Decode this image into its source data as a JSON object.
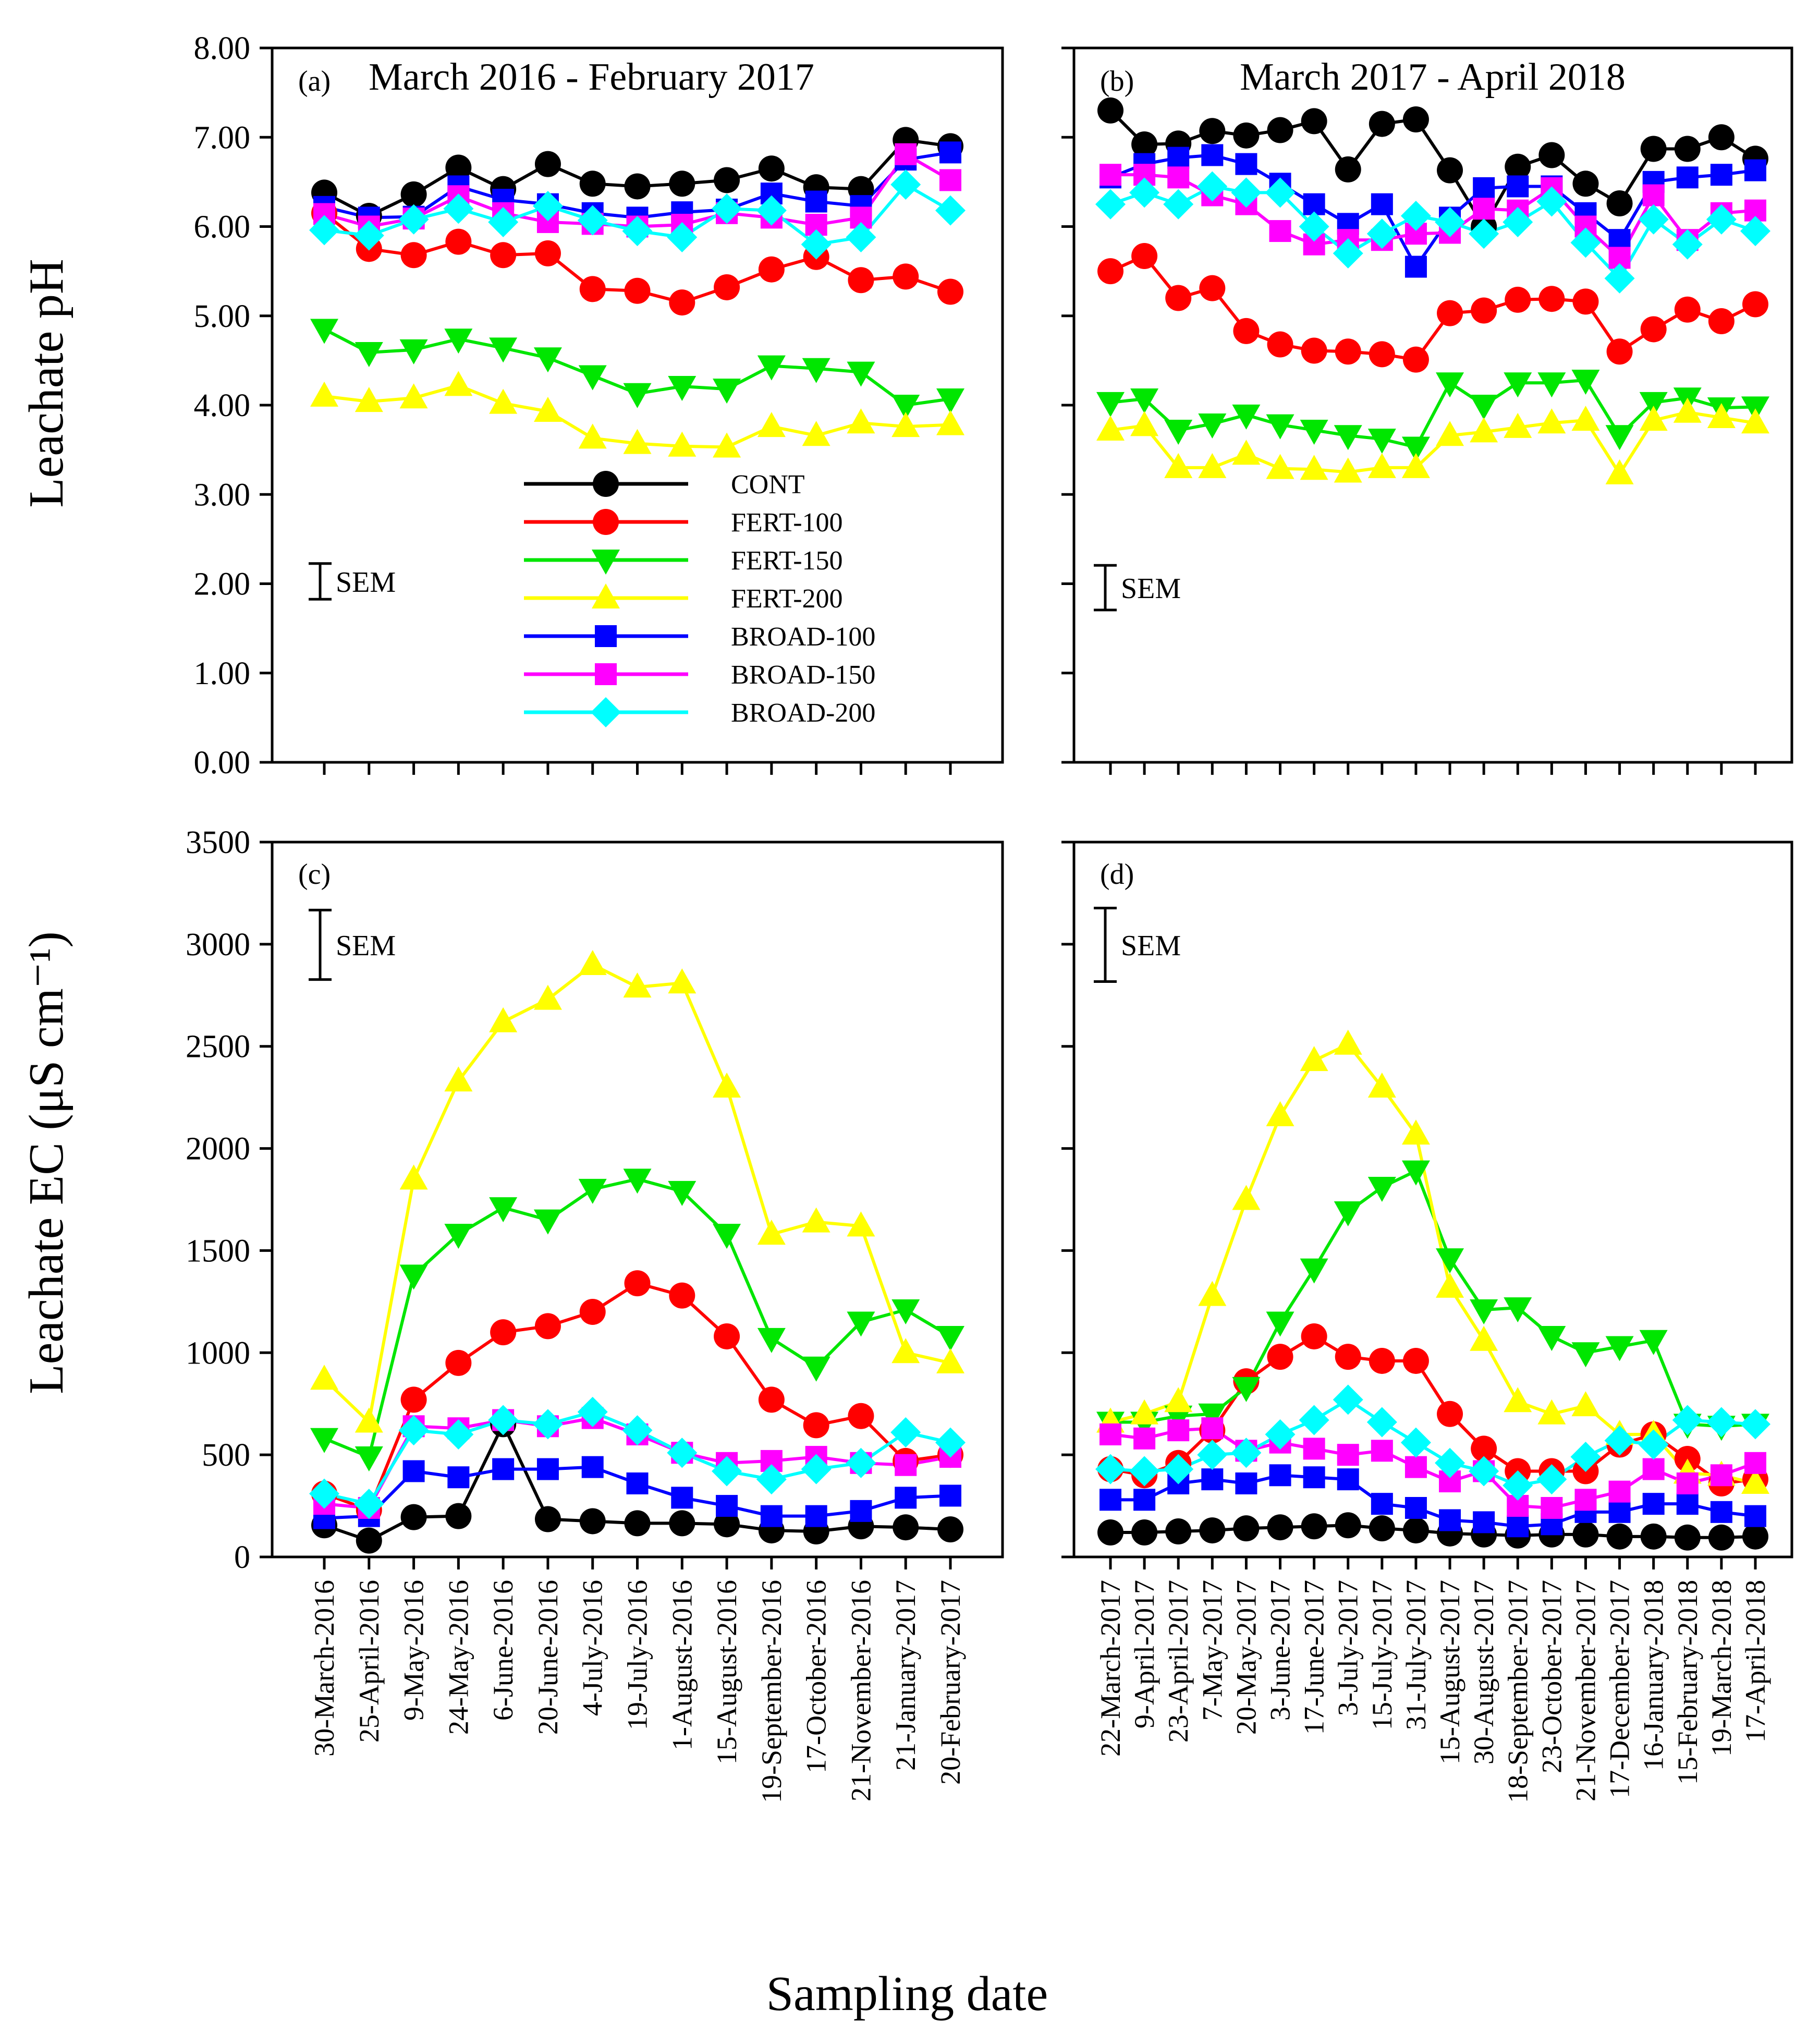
{
  "figure": {
    "xlabel": "Sampling date",
    "sem_label": "SEM"
  },
  "legend": {
    "entries": [
      "CONT",
      "FERT-100",
      "FERT-150",
      "FERT-200",
      "BROAD-100",
      "BROAD-150",
      "BROAD-200"
    ]
  },
  "colors": {
    "CONT": "#000000",
    "FERT-100": "#ff0000",
    "FERT-150": "#00e600",
    "FERT-200": "#ffff00",
    "BROAD-100": "#0000ff",
    "BROAD-150": "#ff00ff",
    "BROAD-200": "#00ffff"
  },
  "markers": {
    "CONT": "circle",
    "FERT-100": "circle",
    "FERT-150": "triangle-down",
    "FERT-200": "triangle-up",
    "BROAD-100": "square",
    "BROAD-150": "square",
    "BROAD-200": "diamond"
  },
  "chart_data": [
    {
      "id": "a",
      "type": "line",
      "tag": "(a)",
      "title": "March 2016 - February 2017",
      "ylabel": "Leachate pH",
      "ylim": [
        0,
        8
      ],
      "yticks": [
        "0.00",
        "1.00",
        "2.00",
        "3.00",
        "4.00",
        "5.00",
        "6.00",
        "7.00",
        "8.00"
      ],
      "categories": [
        "30-March-2016",
        "25-April-2016",
        "9-May-2016",
        "24-May-2016",
        "6-June-2016",
        "20-June-2016",
        "4-July-2016",
        "19-July-2016",
        "1-August-2016",
        "15-August-2016",
        "19-September-2016",
        "17-October-2016",
        "21-November-2016",
        "21-January-2017",
        "20-February-2017"
      ],
      "sem_value": 0.4,
      "series": [
        {
          "name": "CONT",
          "values": [
            6.38,
            6.12,
            6.36,
            6.66,
            6.42,
            6.7,
            6.48,
            6.45,
            6.48,
            6.52,
            6.65,
            6.44,
            6.42,
            6.97,
            6.9
          ]
        },
        {
          "name": "FERT-100",
          "values": [
            6.15,
            5.75,
            5.68,
            5.83,
            5.68,
            5.7,
            5.3,
            5.28,
            5.15,
            5.32,
            5.52,
            5.66,
            5.4,
            5.44,
            5.27
          ]
        },
        {
          "name": "FERT-150",
          "values": [
            4.85,
            4.59,
            4.62,
            4.74,
            4.64,
            4.53,
            4.33,
            4.13,
            4.21,
            4.18,
            4.44,
            4.41,
            4.37,
            4.0,
            4.07
          ]
        },
        {
          "name": "FERT-200",
          "values": [
            4.1,
            4.04,
            4.08,
            4.22,
            4.02,
            3.93,
            3.63,
            3.57,
            3.54,
            3.53,
            3.76,
            3.66,
            3.8,
            3.76,
            3.78
          ]
        },
        {
          "name": "BROAD-100",
          "values": [
            6.22,
            6.1,
            6.11,
            6.45,
            6.3,
            6.25,
            6.15,
            6.1,
            6.16,
            6.19,
            6.37,
            6.28,
            6.23,
            6.75,
            6.83
          ]
        },
        {
          "name": "BROAD-150",
          "values": [
            6.14,
            6.0,
            6.09,
            6.34,
            6.15,
            6.05,
            6.03,
            6.0,
            6.02,
            6.15,
            6.1,
            6.02,
            6.1,
            6.81,
            6.52
          ]
        },
        {
          "name": "BROAD-200",
          "values": [
            5.96,
            5.9,
            6.08,
            6.2,
            6.05,
            6.23,
            6.07,
            5.95,
            5.88,
            6.2,
            6.18,
            5.8,
            5.88,
            6.47,
            6.18
          ]
        }
      ]
    },
    {
      "id": "b",
      "type": "line",
      "tag": "(b)",
      "title": "March 2017 - April 2018",
      "ylabel": "",
      "ylim": [
        0,
        8
      ],
      "yticks": [],
      "categories": [
        "22-March-2017",
        "9-April-2017",
        "23-April-2017",
        "7-May-2017",
        "20-May-2017",
        "3-June-2017",
        "17-June-2017",
        "3-July-2017",
        "15-July-2017",
        "31-July-2017",
        "15-August-2017",
        "30-August-2017",
        "18-September-2017",
        "23-October-2017",
        "21-November-2017",
        "17-December-2017",
        "16-January-2018",
        "15-February-2018",
        "19-March-2018",
        "17-April-2018"
      ],
      "sem_value": 0.5,
      "series": [
        {
          "name": "CONT",
          "values": [
            7.3,
            6.92,
            6.93,
            7.07,
            7.02,
            7.08,
            7.18,
            6.64,
            7.15,
            7.2,
            6.63,
            6.0,
            6.67,
            6.8,
            6.48,
            6.26,
            6.87,
            6.87,
            7.0,
            6.76
          ]
        },
        {
          "name": "FERT-100",
          "values": [
            5.5,
            5.67,
            5.2,
            5.31,
            4.83,
            4.68,
            4.61,
            4.6,
            4.57,
            4.51,
            5.03,
            5.06,
            5.18,
            5.19,
            5.16,
            4.6,
            4.85,
            5.07,
            4.94,
            5.13
          ]
        },
        {
          "name": "FERT-150",
          "values": [
            4.03,
            4.07,
            3.72,
            3.79,
            3.89,
            3.78,
            3.72,
            3.66,
            3.62,
            3.53,
            4.25,
            4.0,
            4.25,
            4.25,
            4.28,
            3.66,
            4.03,
            4.08,
            3.97,
            3.98
          ]
        },
        {
          "name": "FERT-200",
          "values": [
            3.72,
            3.77,
            3.3,
            3.3,
            3.45,
            3.29,
            3.28,
            3.25,
            3.3,
            3.3,
            3.66,
            3.7,
            3.75,
            3.8,
            3.83,
            3.23,
            3.83,
            3.92,
            3.86,
            3.8
          ]
        },
        {
          "name": "BROAD-100",
          "values": [
            6.55,
            6.7,
            6.77,
            6.8,
            6.7,
            6.48,
            6.25,
            6.03,
            6.25,
            5.55,
            6.1,
            6.43,
            6.45,
            6.45,
            6.15,
            5.85,
            6.5,
            6.55,
            6.58,
            6.63
          ]
        },
        {
          "name": "BROAD-150",
          "values": [
            6.58,
            6.58,
            6.55,
            6.35,
            6.25,
            5.95,
            5.8,
            5.85,
            5.85,
            5.92,
            5.93,
            6.2,
            6.18,
            6.43,
            6.0,
            5.65,
            6.35,
            5.85,
            6.15,
            6.18
          ]
        },
        {
          "name": "BROAD-200",
          "values": [
            6.25,
            6.38,
            6.25,
            6.45,
            6.38,
            6.38,
            6.0,
            5.7,
            5.92,
            6.12,
            6.05,
            5.92,
            6.05,
            6.28,
            5.82,
            5.42,
            6.08,
            5.8,
            6.08,
            5.95
          ]
        }
      ]
    },
    {
      "id": "c",
      "type": "line",
      "tag": "(c)",
      "title": "",
      "ylabel": "Leachate EC (μS cm⁻¹)",
      "ylim": [
        0,
        3500
      ],
      "yticks": [
        "0",
        "500",
        "1000",
        "1500",
        "2000",
        "2500",
        "3000",
        "3500"
      ],
      "categories": [
        "30-March-2016",
        "25-April-2016",
        "9-May-2016",
        "24-May-2016",
        "6-June-2016",
        "20-June-2016",
        "4-July-2016",
        "19-July-2016",
        "1-August-2016",
        "15-August-2016",
        "19-September-2016",
        "17-October-2016",
        "21-November-2016",
        "21-January-2017",
        "20-February-2017"
      ],
      "sem_value": 340,
      "series": [
        {
          "name": "CONT",
          "values": [
            155,
            80,
            195,
            200,
            650,
            185,
            175,
            165,
            165,
            160,
            130,
            125,
            150,
            145,
            135
          ]
        },
        {
          "name": "FERT-100",
          "values": [
            310,
            230,
            770,
            950,
            1100,
            1130,
            1200,
            1340,
            1280,
            1080,
            770,
            645,
            690,
            470,
            500
          ]
        },
        {
          "name": "FERT-150",
          "values": [
            580,
            490,
            1380,
            1580,
            1710,
            1650,
            1800,
            1850,
            1790,
            1580,
            1070,
            930,
            1150,
            1210,
            1080
          ]
        },
        {
          "name": "FERT-200",
          "values": [
            870,
            660,
            1850,
            2330,
            2620,
            2730,
            2900,
            2790,
            2810,
            2300,
            1580,
            1640,
            1620,
            1000,
            950
          ]
        },
        {
          "name": "BROAD-100",
          "values": [
            190,
            200,
            420,
            390,
            430,
            430,
            440,
            360,
            290,
            250,
            200,
            200,
            225,
            290,
            300
          ]
        },
        {
          "name": "BROAD-150",
          "values": [
            260,
            240,
            640,
            630,
            670,
            640,
            680,
            600,
            510,
            460,
            470,
            490,
            460,
            450,
            490
          ]
        },
        {
          "name": "BROAD-200",
          "values": [
            310,
            260,
            620,
            600,
            670,
            650,
            710,
            620,
            510,
            420,
            380,
            430,
            460,
            610,
            560
          ]
        }
      ]
    },
    {
      "id": "d",
      "type": "line",
      "tag": "(d)",
      "title": "",
      "ylabel": "",
      "ylim": [
        0,
        3500
      ],
      "yticks": [],
      "categories": [
        "22-March-2017",
        "9-April-2017",
        "23-April-2017",
        "7-May-2017",
        "20-May-2017",
        "3-June-2017",
        "17-June-2017",
        "3-July-2017",
        "15-July-2017",
        "31-July-2017",
        "15-August-2017",
        "30-August-2017",
        "18-September-2017",
        "23-October-2017",
        "21-November-2017",
        "17-December-2017",
        "16-January-2018",
        "15-February-2018",
        "19-March-2018",
        "17-April-2018"
      ],
      "sem_value": 360,
      "series": [
        {
          "name": "CONT",
          "values": [
            120,
            120,
            125,
            130,
            140,
            145,
            150,
            155,
            140,
            130,
            115,
            110,
            105,
            110,
            110,
            100,
            100,
            95,
            95,
            100
          ]
        },
        {
          "name": "FERT-100",
          "values": [
            430,
            400,
            460,
            620,
            860,
            980,
            1080,
            980,
            960,
            960,
            700,
            530,
            420,
            420,
            420,
            550,
            600,
            480,
            360,
            380
          ]
        },
        {
          "name": "FERT-150",
          "values": [
            660,
            660,
            690,
            700,
            830,
            1150,
            1410,
            1690,
            1810,
            1890,
            1460,
            1210,
            1220,
            1080,
            1000,
            1030,
            1060,
            650,
            640,
            650
          ]
        },
        {
          "name": "FERT-200",
          "values": [
            660,
            700,
            760,
            1280,
            1750,
            2160,
            2430,
            2510,
            2300,
            2070,
            1320,
            1060,
            760,
            700,
            740,
            600,
            600,
            410,
            400,
            360
          ]
        },
        {
          "name": "BROAD-100",
          "values": [
            280,
            280,
            360,
            380,
            360,
            400,
            390,
            380,
            260,
            240,
            180,
            170,
            150,
            160,
            220,
            220,
            260,
            260,
            220,
            200
          ]
        },
        {
          "name": "BROAD-150",
          "values": [
            600,
            580,
            620,
            630,
            520,
            560,
            530,
            500,
            520,
            440,
            370,
            420,
            250,
            240,
            280,
            320,
            430,
            360,
            400,
            460
          ]
        },
        {
          "name": "BROAD-200",
          "values": [
            430,
            420,
            430,
            500,
            510,
            600,
            670,
            770,
            660,
            560,
            460,
            420,
            350,
            380,
            490,
            570,
            550,
            670,
            660,
            650
          ]
        }
      ]
    }
  ]
}
